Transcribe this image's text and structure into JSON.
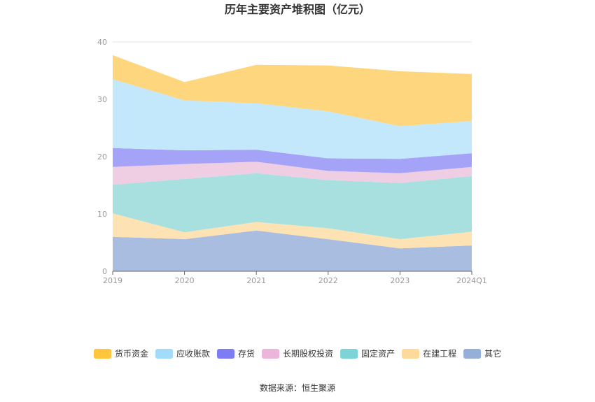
{
  "chart_data": {
    "type": "area",
    "stacked": true,
    "title": "历年主要资产堆积图（亿元）",
    "categories": [
      "2019",
      "2020",
      "2021",
      "2022",
      "2023",
      "2024Q1"
    ],
    "ylim": [
      0,
      40
    ],
    "yticks": [
      "0",
      "10",
      "20",
      "30",
      "40"
    ],
    "grid": true,
    "legend_position": "bottom",
    "series": [
      {
        "name": "其它",
        "color": "#a9bde0",
        "values": [
          6.0,
          5.6,
          7.1,
          5.6,
          4.0,
          4.5
        ]
      },
      {
        "name": "在建工程",
        "color": "#fde2b4",
        "values": [
          4.1,
          1.2,
          1.5,
          1.9,
          1.6,
          2.4
        ]
      },
      {
        "name": "固定资产",
        "color": "#a8e0e0",
        "values": [
          5.0,
          9.3,
          8.5,
          8.4,
          9.8,
          9.7
        ]
      },
      {
        "name": "长期股权投资",
        "color": "#efcde3",
        "values": [
          3.1,
          2.6,
          2.0,
          1.6,
          1.7,
          1.6
        ]
      },
      {
        "name": "存货",
        "color": "#a4a3f7",
        "values": [
          3.3,
          2.4,
          2.1,
          2.2,
          2.5,
          2.4
        ]
      },
      {
        "name": "应收账款",
        "color": "#c4e8fb",
        "values": [
          12.0,
          8.7,
          8.1,
          8.2,
          5.7,
          5.6
        ]
      },
      {
        "name": "货币资金",
        "color": "#fdd67d",
        "values": [
          4.2,
          3.2,
          6.7,
          8.0,
          9.6,
          8.2
        ]
      }
    ],
    "legend_order": [
      "货币资金",
      "应收账款",
      "存货",
      "长期股权投资",
      "固定资产",
      "在建工程",
      "其它"
    ],
    "legend_colors": {
      "货币资金": "#ffc53d",
      "应收账款": "#a3dcfa",
      "存货": "#7d7cf2",
      "长期股权投资": "#ecb6db",
      "固定资产": "#7cd4d6",
      "在建工程": "#fdd99b",
      "其它": "#96afd9"
    }
  },
  "source": "数据来源：恒生聚源"
}
